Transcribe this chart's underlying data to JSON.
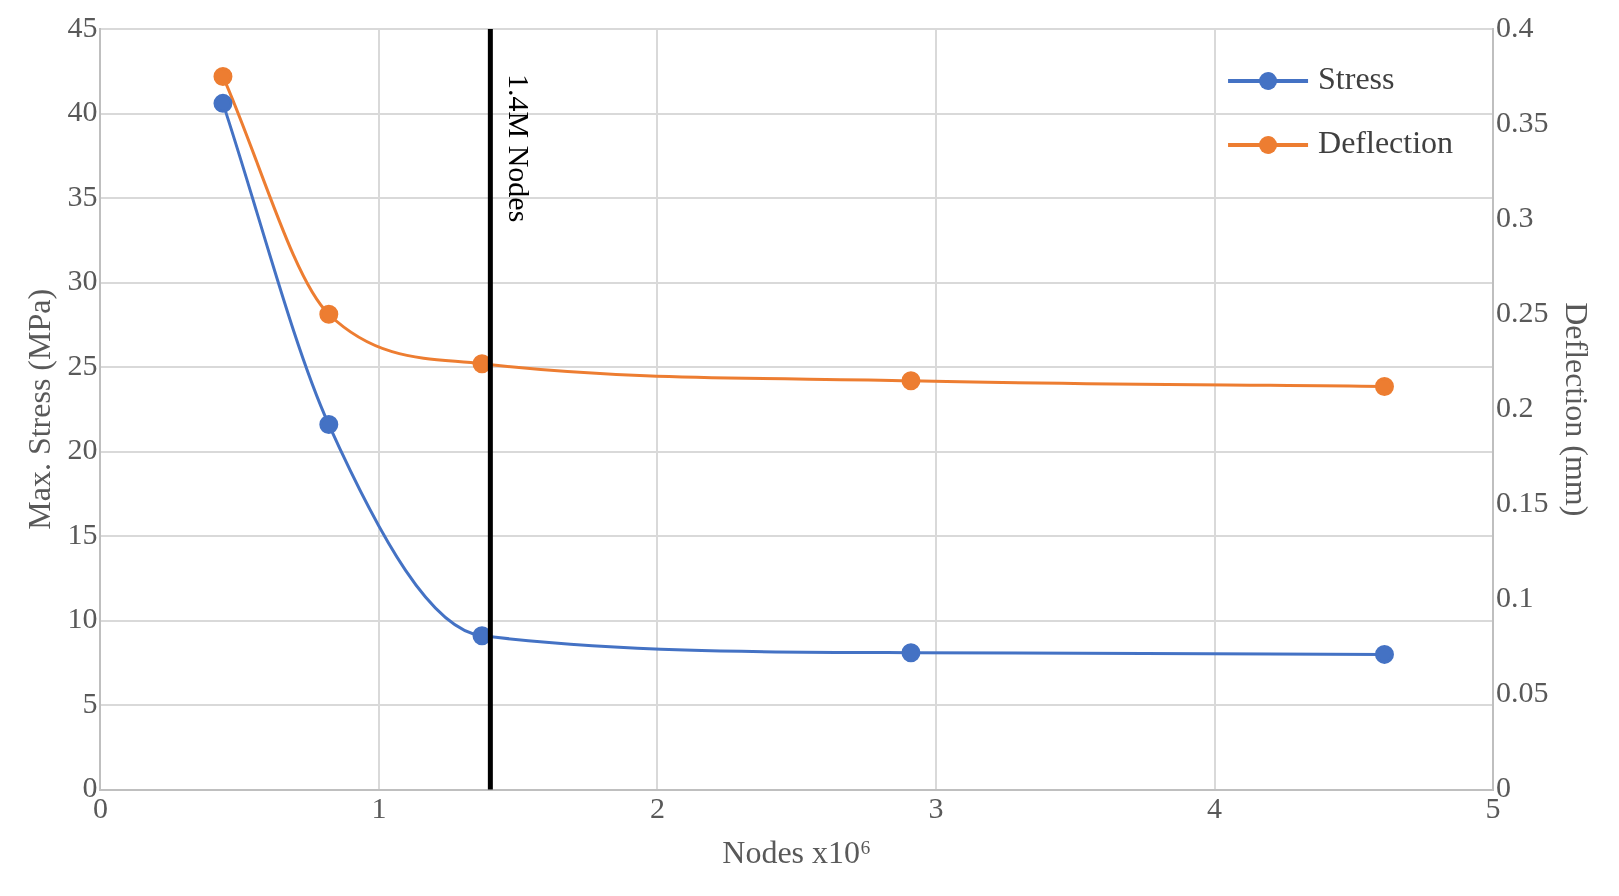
{
  "chart_data": {
    "type": "line",
    "xlabel": "Nodes x10⁶",
    "ylabel": "Max. Stress (MPa)",
    "y2label": "Deflection (mm)",
    "x": [
      0.44,
      0.82,
      1.37,
      2.91,
      4.61
    ],
    "series": [
      {
        "name": "Stress",
        "color": "#4472c4",
        "values": [
          40.6,
          21.6,
          9.1,
          8.1,
          8.0
        ]
      },
      {
        "name": "Deflection",
        "color": "#ed7d31",
        "axis": "y2",
        "values": [
          0.375,
          0.25,
          0.224,
          0.215,
          0.212
        ]
      }
    ],
    "xlim": [
      0,
      5
    ],
    "xticks": [
      0,
      1,
      2,
      3,
      4,
      5
    ],
    "ylim": [
      0,
      45
    ],
    "yticks": [
      0,
      5,
      10,
      15,
      20,
      25,
      30,
      35,
      40,
      45
    ],
    "y2lim": [
      0,
      0.4
    ],
    "y2ticks": [
      0,
      0.05,
      0.1,
      0.15,
      0.2,
      0.25,
      0.3,
      0.35,
      0.4
    ],
    "ref_lines": [
      {
        "axis": "x",
        "value": 1.4,
        "label": "1.4M Nodes",
        "color": "#000000"
      }
    ],
    "grid": true,
    "legend": "top right",
    "marker": "circle",
    "line_style": "solid"
  }
}
